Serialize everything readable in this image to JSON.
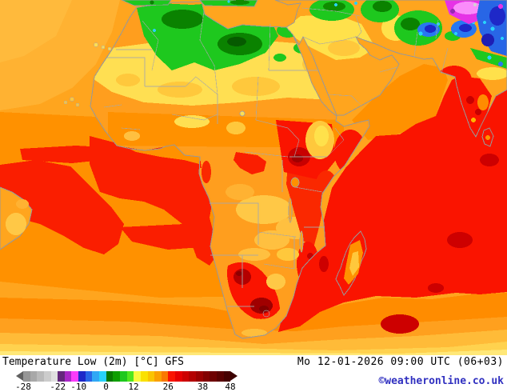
{
  "legend": {
    "title": "Temperature Low (2m) [°C] GFS",
    "datetime": "Mo 12-01-2026 09:00 UTC (06+03)",
    "copyright": "©weatheronline.co.uk",
    "copyright_color": "#3030c0",
    "colorbar": {
      "tick_labels": [
        "-28",
        "-22",
        "-10",
        "0",
        "12",
        "26",
        "38",
        "48"
      ],
      "tick_positions_pct": [
        0,
        16.7,
        26.7,
        40,
        53.3,
        70,
        86.7,
        100
      ],
      "segments": [
        "#969696",
        "#a8a8a8",
        "#bababa",
        "#cccccc",
        "#e0e0e0",
        "#64287c",
        "#aa28c8",
        "#fa3cfa",
        "#1e28c8",
        "#2866e6",
        "#30a8f5",
        "#28d2fa",
        "#0a7800",
        "#0f9e00",
        "#1ec81e",
        "#50e61e",
        "#fafa3c",
        "#fae100",
        "#fac400",
        "#faa000",
        "#fa7800",
        "#fa1400",
        "#e60000",
        "#cd0000",
        "#b40000",
        "#9b0000",
        "#820000",
        "#6e0000",
        "#5a0000",
        "#460000"
      ],
      "left_arrow_color": "#606060",
      "right_arrow_color": "#3c0000"
    }
  },
  "map": {
    "palette": {
      "ocean_warm_orange": "#ffa51e",
      "ocean_deep_orange": "#ff9100",
      "hot_red": "#fa1400",
      "very_hot_dark_red": "#c80000",
      "mild_yellow": "#ffdf52",
      "warm_gold": "#ffc83c",
      "cool_green": "#1ec81e",
      "cold_dark_green": "#0a8200",
      "cold_cyan": "#28d2fa",
      "cold_blue": "#2866e6",
      "very_cold_magenta": "#e632e6",
      "coastline_gray": "#989898"
    }
  }
}
